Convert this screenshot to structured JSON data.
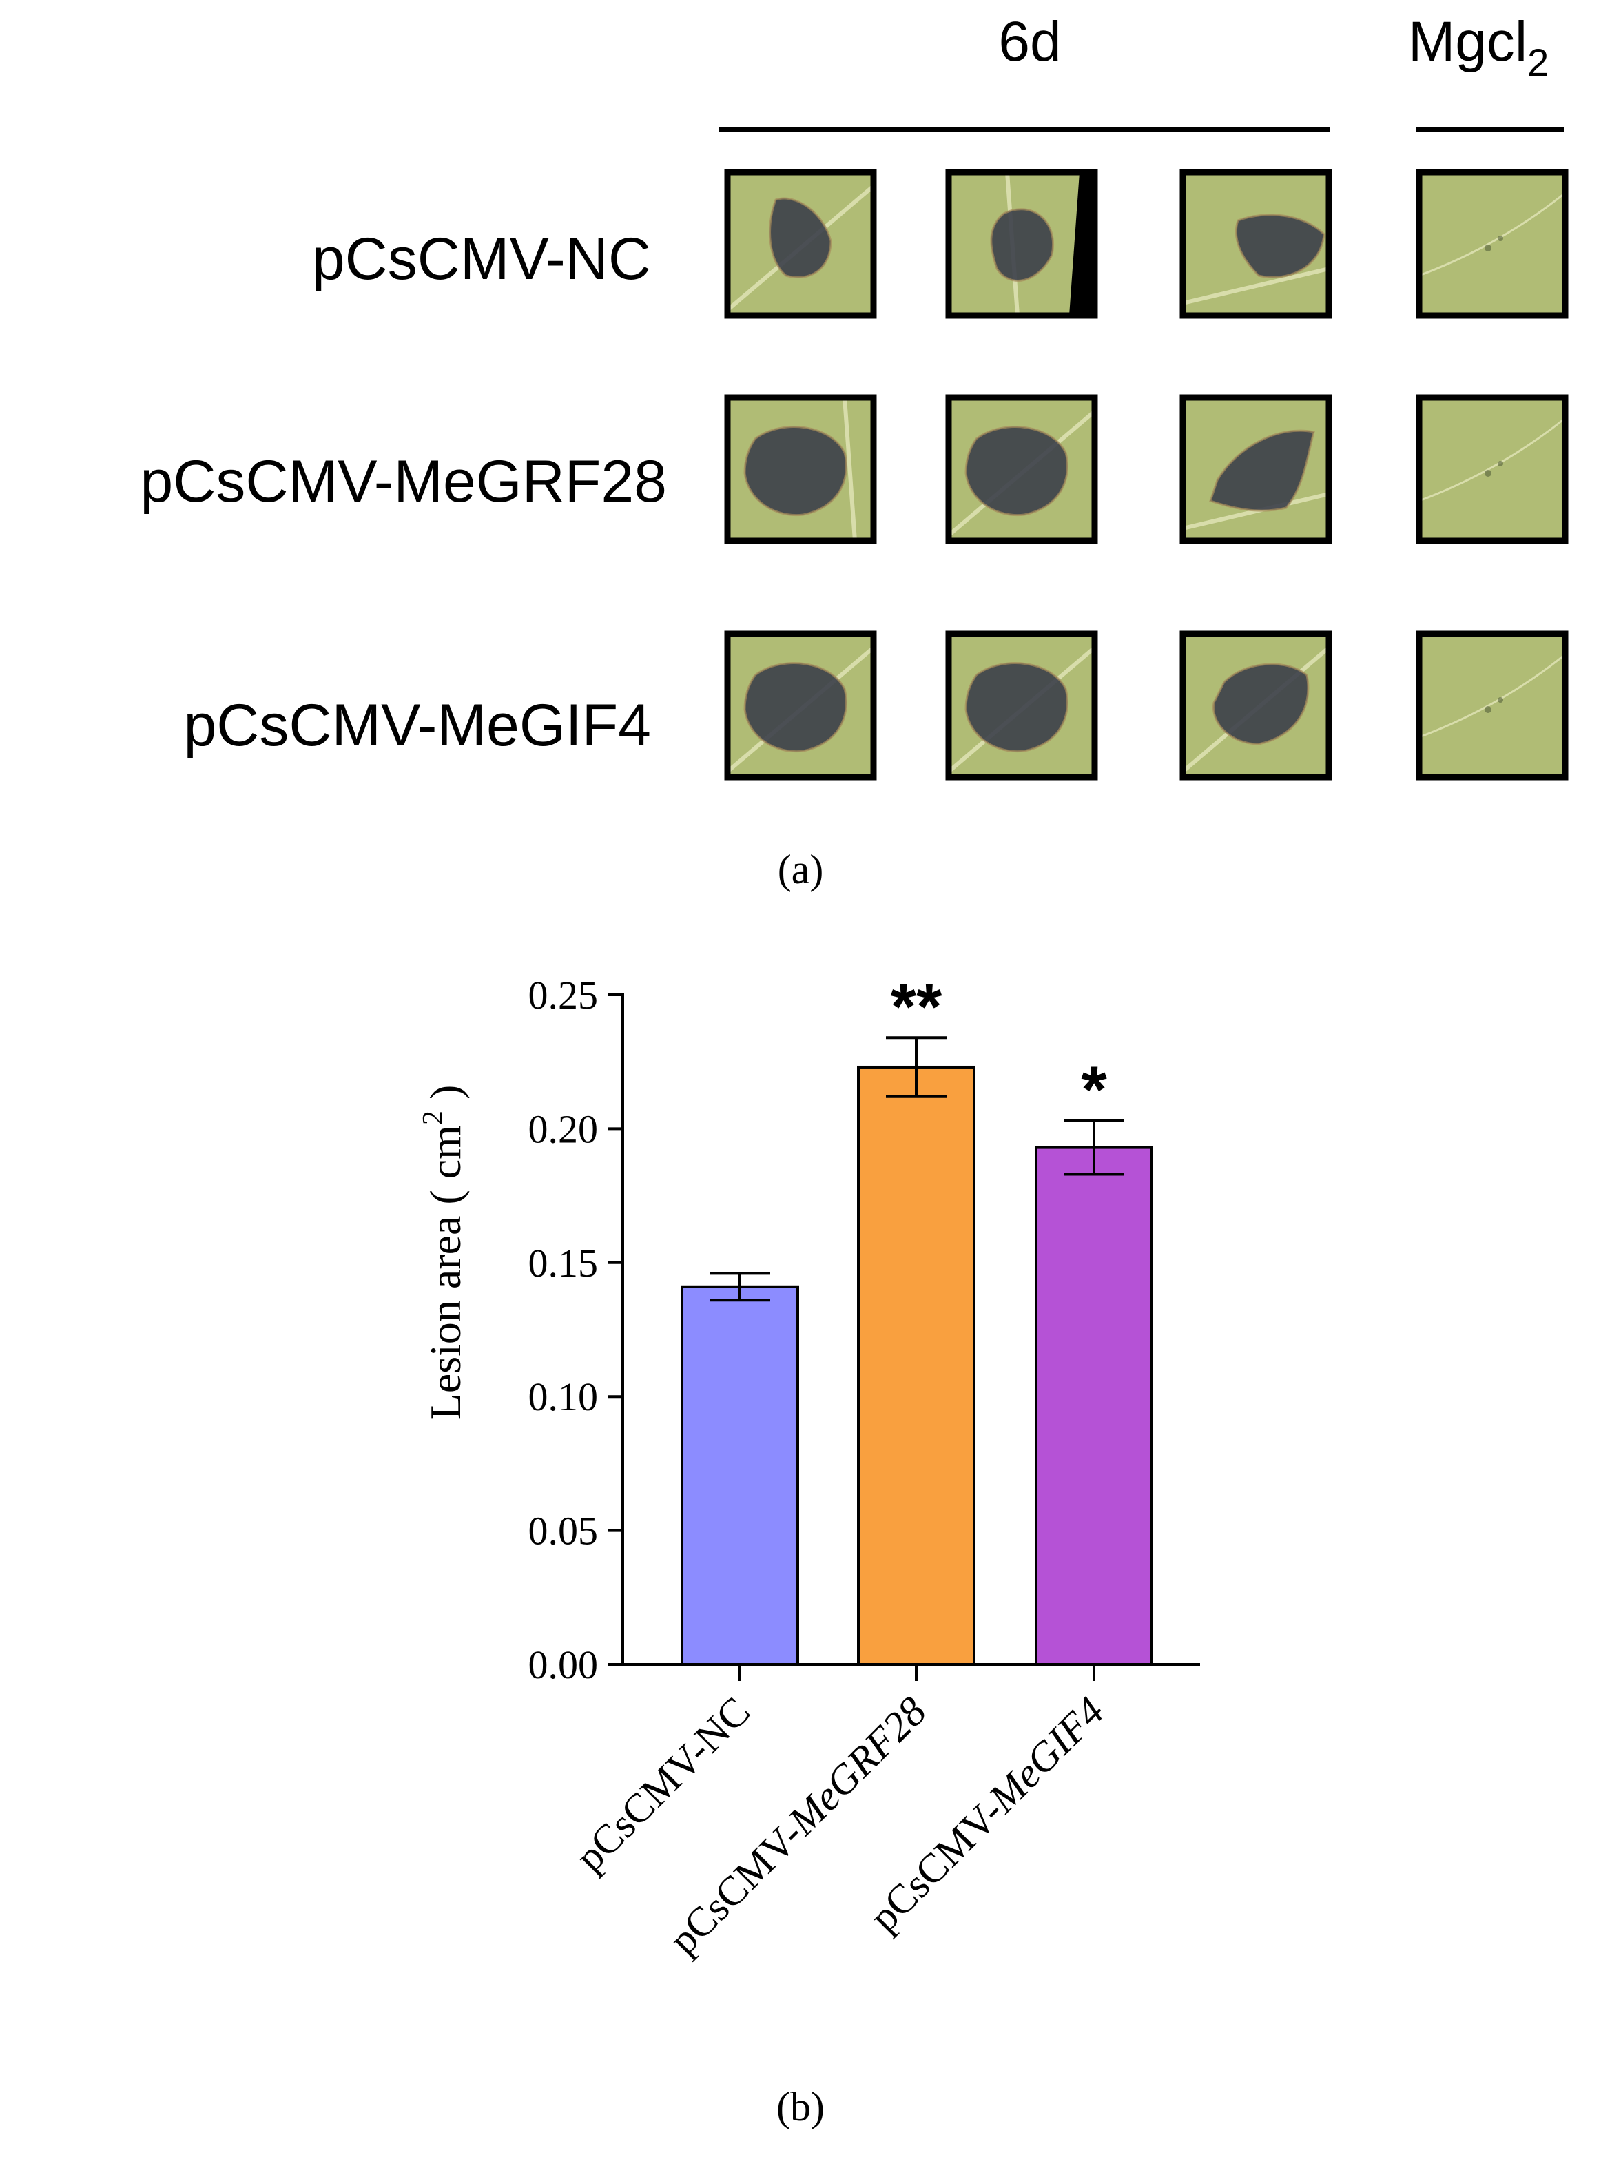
{
  "panel_a": {
    "header_6d": "6d",
    "header_mgcl": "Mgcl",
    "header_mgcl_sub": "2",
    "rows": [
      {
        "label": "pCsCMV-NC",
        "leaves": [
          {
            "lesion": "small",
            "vein": "diag"
          },
          {
            "lesion": "medium",
            "vein": "vertical-left",
            "black_edge": "right"
          },
          {
            "lesion": "medium-right",
            "vein": "diag-low"
          },
          {
            "lesion": "none",
            "vein": "faint"
          }
        ]
      },
      {
        "label": "pCsCMV-MeGRF28",
        "leaves": [
          {
            "lesion": "large",
            "vein": "vertical-right"
          },
          {
            "lesion": "large",
            "vein": "diag"
          },
          {
            "lesion": "large-right",
            "vein": "diag-low"
          },
          {
            "lesion": "none",
            "vein": "faint"
          }
        ]
      },
      {
        "label": "pCsCMV-MeGIF4",
        "leaves": [
          {
            "lesion": "large",
            "vein": "diag"
          },
          {
            "lesion": "large",
            "vein": "diag"
          },
          {
            "lesion": "large-top",
            "vein": "diag"
          },
          {
            "lesion": "none",
            "vein": "faint"
          }
        ]
      }
    ],
    "caption": "(a)"
  },
  "panel_b": {
    "caption": "(b)"
  },
  "chart_data": {
    "type": "bar",
    "categories": [
      "pCsCMV-NC",
      "pCsCMV-MeGRF28",
      "pCsCMV-MeGIF4"
    ],
    "category_prefix": "pCsCMV-",
    "category_suffix_italic": [
      "NC",
      "MeGRF28",
      "MeGIF4"
    ],
    "italic_suffix": [
      false,
      true,
      true
    ],
    "values": [
      0.141,
      0.223,
      0.193
    ],
    "errors": [
      0.005,
      0.011,
      0.01
    ],
    "significance": [
      "",
      "**",
      "*"
    ],
    "colors": [
      "#8c8cff",
      "#f9a03f",
      "#b552d6"
    ],
    "ylabel": "Lesion area ( cm",
    "ylabel_sup": "2",
    "ylabel_close": " )",
    "ylim": [
      0,
      0.25
    ],
    "yticks": [
      "0.00",
      "0.05",
      "0.10",
      "0.15",
      "0.20",
      "0.25"
    ],
    "grid": false,
    "legend": "none"
  }
}
